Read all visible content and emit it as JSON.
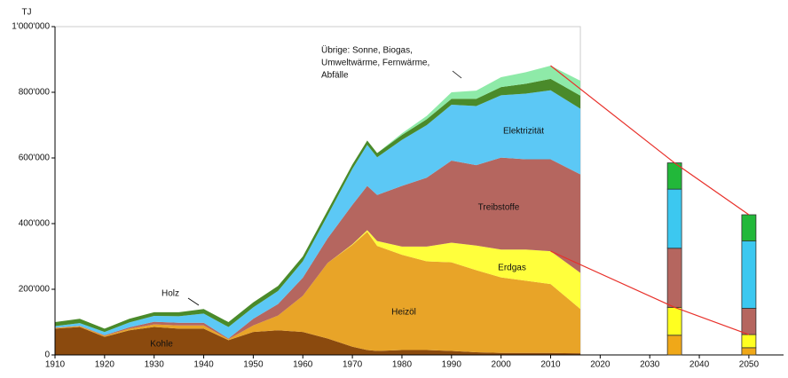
{
  "chart_data": {
    "type": "stacked_area",
    "y_unit": "TJ",
    "x": [
      1910,
      1915,
      1920,
      1925,
      1930,
      1935,
      1940,
      1945,
      1950,
      1955,
      1960,
      1965,
      1970,
      1973,
      1975,
      1980,
      1985,
      1990,
      1995,
      2000,
      2005,
      2010,
      2016
    ],
    "series": [
      {
        "name": "Kohle",
        "color": "#8b4a0e",
        "values": [
          80000,
          85000,
          55000,
          75000,
          85000,
          80000,
          80000,
          45000,
          70000,
          75000,
          70000,
          50000,
          25000,
          15000,
          12000,
          15000,
          15000,
          12000,
          8000,
          6000,
          6000,
          6000,
          5000
        ]
      },
      {
        "name": "Heizöl",
        "color": "#e8a428",
        "values": [
          2000,
          3000,
          3000,
          5000,
          8000,
          10000,
          10000,
          3000,
          20000,
          45000,
          110000,
          230000,
          310000,
          360000,
          320000,
          290000,
          270000,
          270000,
          250000,
          230000,
          220000,
          210000,
          135000
        ]
      },
      {
        "name": "Erdgas",
        "color": "#ffff3c",
        "values": [
          0,
          0,
          0,
          0,
          0,
          0,
          0,
          0,
          0,
          0,
          0,
          0,
          2000,
          5000,
          15000,
          25000,
          45000,
          60000,
          75000,
          85000,
          95000,
          100000,
          110000
        ]
      },
      {
        "name": "Treibstoffe",
        "color": "#b5665f",
        "values": [
          1000,
          1000,
          2000,
          4000,
          8000,
          8000,
          8000,
          2000,
          20000,
          35000,
          55000,
          75000,
          120000,
          135000,
          140000,
          185000,
          210000,
          250000,
          245000,
          280000,
          275000,
          280000,
          300000
        ]
      },
      {
        "name": "Elektrizität",
        "color": "#5cc8f5",
        "values": [
          5000,
          8000,
          10000,
          15000,
          18000,
          20000,
          28000,
          35000,
          35000,
          40000,
          50000,
          70000,
          110000,
          125000,
          115000,
          140000,
          160000,
          170000,
          180000,
          190000,
          200000,
          210000,
          200000
        ]
      },
      {
        "name": "Holz",
        "color": "#4a8a2a",
        "values": [
          12000,
          13000,
          10000,
          11000,
          11000,
          12000,
          14000,
          15000,
          15000,
          15000,
          15000,
          15000,
          13000,
          13000,
          13000,
          15000,
          18000,
          18000,
          22000,
          25000,
          30000,
          35000,
          40000
        ]
      },
      {
        "color": "#8eeaa8",
        "values": [
          0,
          0,
          0,
          0,
          0,
          0,
          0,
          0,
          0,
          0,
          0,
          0,
          0,
          0,
          0,
          5000,
          10000,
          20000,
          25000,
          30000,
          35000,
          40000,
          45000
        ]
      }
    ],
    "annotation_lines": [
      "Übrige: Sonne, Biogas,",
      "Umweltwärme, Fernwärme,",
      "Abfälle"
    ],
    "projection": {
      "x": [
        2035,
        2050
      ],
      "series": [
        {
          "color": "#f0a818",
          "values": [
            60000,
            22000
          ]
        },
        {
          "color": "#ffff20",
          "values": [
            85000,
            40000
          ]
        },
        {
          "color": "#b5665f",
          "values": [
            180000,
            80000
          ]
        },
        {
          "color": "#3cc8f0",
          "values": [
            180000,
            205000
          ]
        },
        {
          "color": "#22b83a",
          "values": [
            80000,
            80000
          ]
        }
      ]
    },
    "xlim": [
      1910,
      2057
    ],
    "xticks": [
      1910,
      1920,
      1930,
      1940,
      1950,
      1960,
      1970,
      1980,
      1990,
      2000,
      2010,
      2020,
      2030,
      2040,
      2050
    ],
    "ylim": [
      0,
      1000000
    ],
    "yticks": [
      0,
      {
        "value": 200000,
        "label": "200'000"
      },
      {
        "value": 400000,
        "label": "400'000"
      },
      {
        "value": 600000,
        "label": "600'000"
      },
      {
        "value": 800000,
        "label": "800'000"
      },
      {
        "value": 1000000,
        "label": "1'000'000"
      }
    ],
    "grid": false
  }
}
